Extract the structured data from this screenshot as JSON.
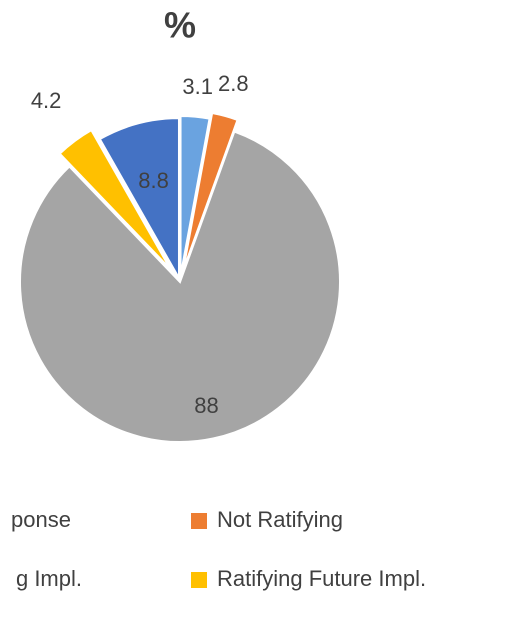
{
  "chart_data": {
    "type": "pie",
    "title": "%",
    "categories": [
      "ponse",
      "Not Ratifying",
      "g Impl.",
      "Ratifying Future Impl.",
      null
    ],
    "values": [
      3.1,
      2.8,
      88,
      4.2,
      8.8
    ],
    "colors": [
      "#6aa3e0",
      "#ed7d31",
      "#a5a5a5",
      "#ffc000",
      "#4472c4"
    ]
  }
}
